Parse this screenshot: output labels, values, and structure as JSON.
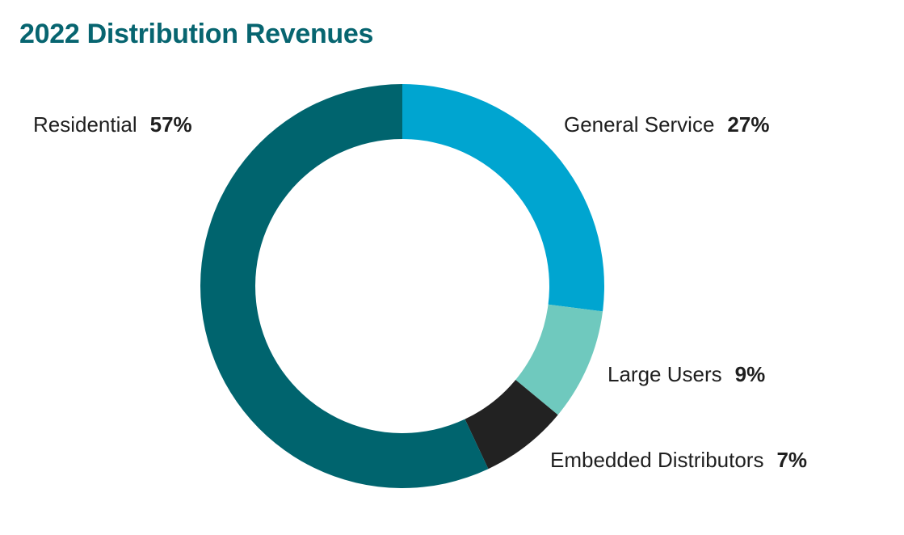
{
  "chart_data": {
    "type": "pie",
    "style": "donut",
    "title": "2022 Distribution Revenues",
    "slices": [
      {
        "label": "Residential",
        "value": 57,
        "value_text": "57%",
        "color": "#00646E"
      },
      {
        "label": "General Service",
        "value": 27,
        "value_text": "27%",
        "color": "#00A5D0"
      },
      {
        "label": "Large Users",
        "value": 9,
        "value_text": "9%",
        "color": "#6FC9BE"
      },
      {
        "label": "Embedded Distributors",
        "value": 7,
        "value_text": "7%",
        "color": "#222222"
      }
    ],
    "draw_order": [
      "General Service",
      "Large Users",
      "Embedded Distributors",
      "Residential"
    ],
    "start": "top",
    "direction": "clockwise",
    "legend": "none"
  }
}
